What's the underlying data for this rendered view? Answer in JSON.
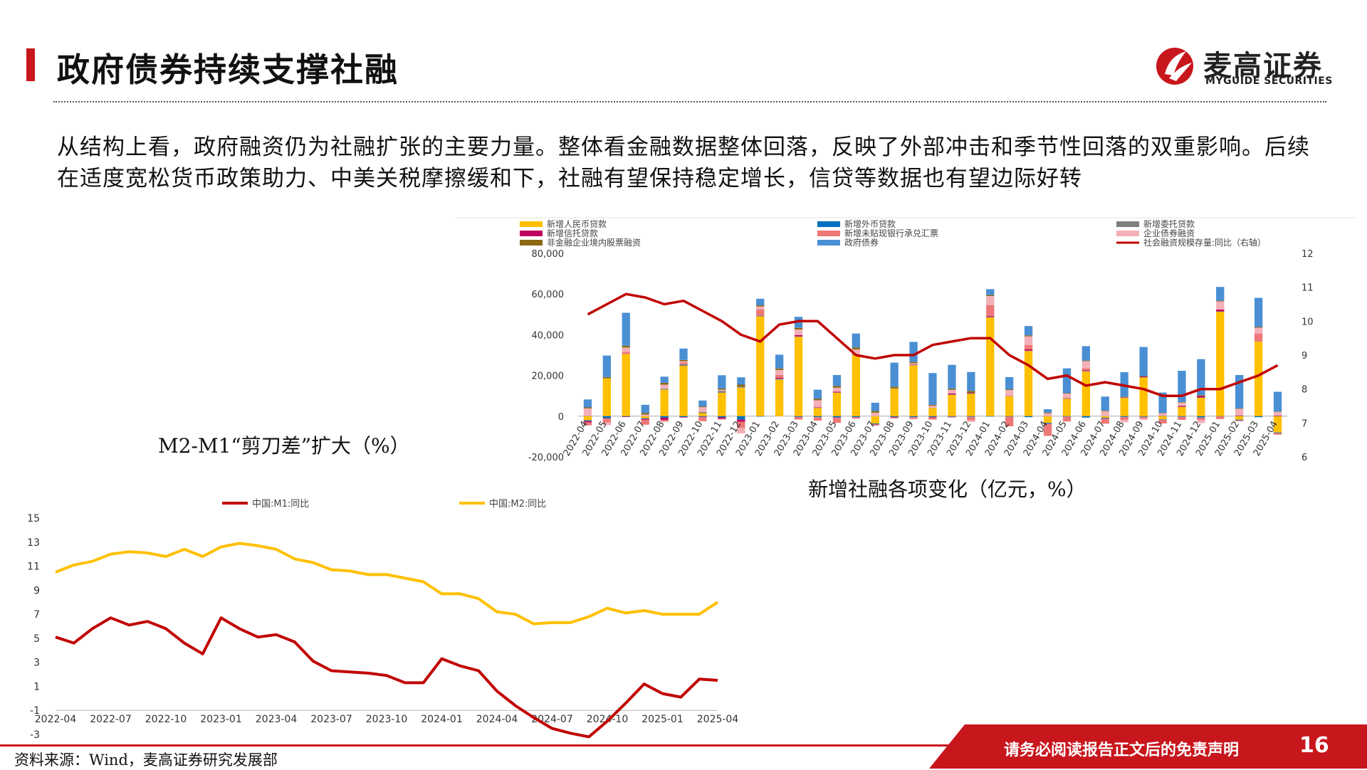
{
  "header": {
    "title": "政府债券持续支撑社融",
    "logo_name": "麦高证券",
    "logo_sub": "MYGUIDE SECURITIES"
  },
  "body_text": "从结构上看，政府融资仍为社融扩张的主要力量。整体看金融数据整体回落，反映了外部冲击和季节性回落的双重影响。后续在适度宽松货币政策助力、中美关税摩擦缓和下，社融有望保持稳定增长，信贷等数据也有望边际好转",
  "footer": {
    "source": "资料来源：Wind，麦高证券研究发展部",
    "disclaimer": "请务必阅读报告正文后的免责声明",
    "page_number": "16"
  },
  "colors": {
    "brand_red": "#c8161d",
    "m1": "#c00000",
    "m2": "#ffc000"
  },
  "chart_data": [
    {
      "type": "line",
      "caption": "M2-M1“剪刀差”扩大（%）",
      "x": [
        "2022-04",
        "2022-05",
        "2022-06",
        "2022-07",
        "2022-08",
        "2022-09",
        "2022-10",
        "2022-11",
        "2022-12",
        "2023-01",
        "2023-02",
        "2023-03",
        "2023-04",
        "2023-05",
        "2023-06",
        "2023-07",
        "2023-08",
        "2023-09",
        "2023-10",
        "2023-11",
        "2023-12",
        "2024-01",
        "2024-02",
        "2024-03",
        "2024-04",
        "2024-05",
        "2024-06",
        "2024-07",
        "2024-08",
        "2024-09",
        "2024-10",
        "2024-11",
        "2024-12",
        "2025-01",
        "2025-02",
        "2025-03",
        "2025-04"
      ],
      "tick_labels": [
        "2022-04",
        "2022-07",
        "2022-10",
        "2023-01",
        "2023-04",
        "2023-07",
        "2023-10",
        "2024-01",
        "2024-04",
        "2024-07",
        "2024-10",
        "2025-01",
        "2025-04"
      ],
      "y_ticks": [
        "15",
        "13",
        "11",
        "9",
        "7",
        "5",
        "3",
        "1",
        "-1",
        "-3"
      ],
      "ylim": [
        -3,
        15
      ],
      "series": [
        {
          "name": "中国:M1:同比",
          "color": "#c00000",
          "values": [
            5.1,
            4.6,
            5.8,
            6.7,
            6.1,
            6.4,
            5.8,
            4.6,
            3.7,
            6.7,
            5.8,
            5.1,
            5.3,
            4.7,
            3.1,
            2.3,
            2.2,
            2.1,
            1.9,
            1.3,
            1.3,
            3.3,
            2.7,
            2.3,
            0.6,
            -0.6,
            -1.6,
            -2.5,
            -2.9,
            -3.2,
            -1.9,
            -0.4,
            1.2,
            0.4,
            0.1,
            1.6,
            1.5
          ]
        },
        {
          "name": "中国:M2:同比",
          "color": "#ffc000",
          "values": [
            10.5,
            11.1,
            11.4,
            12.0,
            12.2,
            12.1,
            11.8,
            12.4,
            11.8,
            12.6,
            12.9,
            12.7,
            12.4,
            11.6,
            11.3,
            10.7,
            10.6,
            10.3,
            10.3,
            10.0,
            9.7,
            8.7,
            8.7,
            8.3,
            7.2,
            7.0,
            6.2,
            6.3,
            6.3,
            6.8,
            7.5,
            7.1,
            7.3,
            7.0,
            7.0,
            7.0,
            8.0
          ]
        }
      ]
    },
    {
      "type": "bar",
      "stacked": true,
      "caption": "新增社融各项变化（亿元，%）",
      "categories": [
        "2022-04",
        "2022-05",
        "2022-06",
        "2022-07",
        "2022-08",
        "2022-09",
        "2022-10",
        "2022-11",
        "2022-12",
        "2023-01",
        "2023-02",
        "2023-03",
        "2023-04",
        "2023-05",
        "2023-06",
        "2023-07",
        "2023-08",
        "2023-09",
        "2023-10",
        "2023-11",
        "2023-12",
        "2024-01",
        "2024-02",
        "2024-03",
        "2024-04",
        "2024-05",
        "2024-06",
        "2024-07",
        "2024-08",
        "2024-09",
        "2024-10",
        "2024-11",
        "2024-12",
        "2025-01",
        "2025-02",
        "2025-03",
        "2025-04"
      ],
      "y_left_ticks": [
        "80,000",
        "60,000",
        "40,000",
        "20,000",
        "0",
        "-20,000"
      ],
      "y_right_ticks": [
        "12",
        "11",
        "10",
        "9",
        "8",
        "7",
        "6"
      ],
      "ylim": [
        -20000,
        80000
      ],
      "y2lim": [
        6,
        12
      ],
      "series": [
        {
          "name": "新增人民币贷款",
          "color": "#ffc000",
          "values": [
            -2000,
            18500,
            30500,
            -1000,
            13000,
            24700,
            1500,
            11500,
            14000,
            49000,
            18000,
            39000,
            4000,
            11500,
            30000,
            -3600,
            13500,
            25000,
            4000,
            10500,
            11000,
            48500,
            9800,
            32000,
            -3300,
            8500,
            22000,
            -800,
            9000,
            19000,
            -1500,
            4500,
            9000,
            51300,
            -1700,
            36700,
            -8000
          ]
        },
        {
          "name": "新增外币贷款",
          "color": "#0070c0",
          "values": [
            -400,
            -1000,
            -200,
            -300,
            -800,
            -500,
            -300,
            -600,
            -1700,
            -200,
            100,
            -400,
            -500,
            -600,
            -500,
            -300,
            -400,
            -500,
            -400,
            -300,
            -300,
            -200,
            -200,
            -500,
            -400,
            -200,
            -700,
            -300,
            -400,
            -300,
            -200,
            -300,
            -700,
            -100,
            -300,
            -500,
            -300
          ]
        },
        {
          "name": "新增委托贷款",
          "color": "#7f7f7f",
          "values": [
            100,
            100,
            100,
            -100,
            500,
            800,
            600,
            900,
            500,
            400,
            300,
            200,
            100,
            200,
            300,
            -100,
            200,
            200,
            100,
            100,
            300,
            200,
            100,
            200,
            -100,
            100,
            200,
            -100,
            100,
            200,
            100,
            100,
            200,
            200,
            200,
            100,
            100
          ]
        },
        {
          "name": "新增信托贷款",
          "color": "#c00060",
          "values": [
            -600,
            -100,
            -200,
            -400,
            -1000,
            -200,
            -200,
            -600,
            -1000,
            100,
            400,
            600,
            200,
            300,
            100,
            -100,
            -200,
            200,
            -200,
            500,
            300,
            400,
            100,
            600,
            -200,
            200,
            300,
            -200,
            200,
            300,
            100,
            400,
            800,
            900,
            200,
            100,
            200
          ]
        },
        {
          "name": "新增未贴现银行承兑汇票",
          "color": "#ee7777",
          "values": [
            -1500,
            -2000,
            1000,
            -2400,
            -900,
            900,
            -2000,
            -500,
            -3100,
            3000,
            1400,
            -1300,
            -1700,
            -2700,
            -700,
            -500,
            -400,
            -900,
            -1100,
            -400,
            -1700,
            5500,
            -4800,
            2100,
            -5700,
            -2400,
            1000,
            -2300,
            -1500,
            -800,
            -1900,
            -1500,
            -1200,
            -1300,
            -500,
            3700,
            -800
          ]
        },
        {
          "name": "企业债券融资",
          "color": "#f4b0b8",
          "values": [
            3700,
            -1300,
            2100,
            800,
            2000,
            600,
            2300,
            600,
            -2700,
            1400,
            2500,
            2800,
            3500,
            2000,
            2400,
            1700,
            -200,
            600,
            1000,
            1800,
            -800,
            4400,
            2800,
            4300,
            1500,
            2300,
            3500,
            2500,
            -1100,
            -800,
            1200,
            1700,
            -1500,
            4000,
            3200,
            2900,
            1800
          ]
        },
        {
          "name": "非金融企业境内股票融资",
          "color": "#8b6914",
          "values": [
            500,
            600,
            900,
            800,
            900,
            600,
            400,
            600,
            1000,
            600,
            700,
            800,
            700,
            800,
            900,
            800,
            800,
            600,
            500,
            600,
            800,
            500,
            400,
            500,
            300,
            200,
            300,
            200,
            200,
            200,
            200,
            200,
            300,
            300,
            200,
            300,
            200
          ]
        },
        {
          "name": "政府债券",
          "color": "#4a8fd4",
          "values": [
            3900,
            10600,
            16200,
            4000,
            3000,
            5600,
            2900,
            6500,
            3600,
            3200,
            6800,
            5400,
            4500,
            5400,
            6900,
            4100,
            11800,
            9900,
            15600,
            11700,
            9300,
            2900,
            6000,
            4600,
            1600,
            12200,
            7100,
            6900,
            12100,
            14300,
            10000,
            15400,
            17700,
            6800,
            16400,
            14300,
            9700
          ]
        },
        {
          "name": "社会融资规模存量:同比（右轴）",
          "color": "#c00000",
          "axis": "right",
          "values": [
            10.2,
            10.5,
            10.8,
            10.7,
            10.5,
            10.6,
            10.3,
            10.0,
            9.6,
            9.4,
            9.9,
            10.0,
            10.0,
            9.5,
            9.0,
            8.9,
            9.0,
            9.0,
            9.3,
            9.4,
            9.5,
            9.5,
            9.0,
            8.7,
            8.3,
            8.4,
            8.1,
            8.2,
            8.1,
            8.0,
            7.8,
            7.8,
            8.0,
            8.0,
            8.2,
            8.4,
            8.7
          ]
        }
      ]
    }
  ]
}
